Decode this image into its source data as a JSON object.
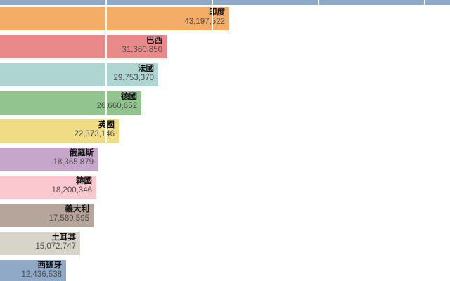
{
  "chart_data": {
    "type": "bar",
    "orientation": "horizontal",
    "title": "",
    "xlabel": "",
    "ylabel": "",
    "grid": true,
    "axis": {
      "gridline_interval": 20000000,
      "gridline_values": [
        20000000,
        40000000,
        60000000,
        80000000
      ],
      "gridline_color": "#ffffff"
    },
    "top_clipped_bar": {
      "color": "#90a9c7",
      "note": "bar clipped at top and right edges, no label visible"
    },
    "bars": [
      {
        "id": "india",
        "label": "印度",
        "value": 43197522,
        "value_text": "43,197,522",
        "color": "#f4ad66"
      },
      {
        "id": "brazil",
        "label": "巴西",
        "value": 31360850,
        "value_text": "31,360,850",
        "color": "#e98a8a"
      },
      {
        "id": "france",
        "label": "法國",
        "value": 29753370,
        "value_text": "29,753,370",
        "color": "#aed5d1"
      },
      {
        "id": "germany",
        "label": "德國",
        "value": 26660652,
        "value_text": "26,660,652",
        "color": "#92c48f"
      },
      {
        "id": "uk",
        "label": "英國",
        "value": 22373146,
        "value_text": "22,373,146",
        "color": "#f0dc85"
      },
      {
        "id": "russia",
        "label": "俄羅斯",
        "value": 18365879,
        "value_text": "18,365,879",
        "color": "#c6a6ca"
      },
      {
        "id": "south-korea",
        "label": "韓國",
        "value": 18200346,
        "value_text": "18,200,346",
        "color": "#fbc8d0"
      },
      {
        "id": "italy",
        "label": "義大利",
        "value": 17589595,
        "value_text": "17,589,595",
        "color": "#b6a59a"
      },
      {
        "id": "turkey",
        "label": "土耳其",
        "value": 15072747,
        "value_text": "15,072,747",
        "color": "#d7d4ca"
      },
      {
        "id": "spain",
        "label": "西班牙",
        "value": 12436538,
        "value_text": "12,436,538",
        "color": "#90a9c7"
      }
    ],
    "text_colors": {
      "bar_name": "#111111",
      "bar_value": "#4d4d4d"
    }
  }
}
